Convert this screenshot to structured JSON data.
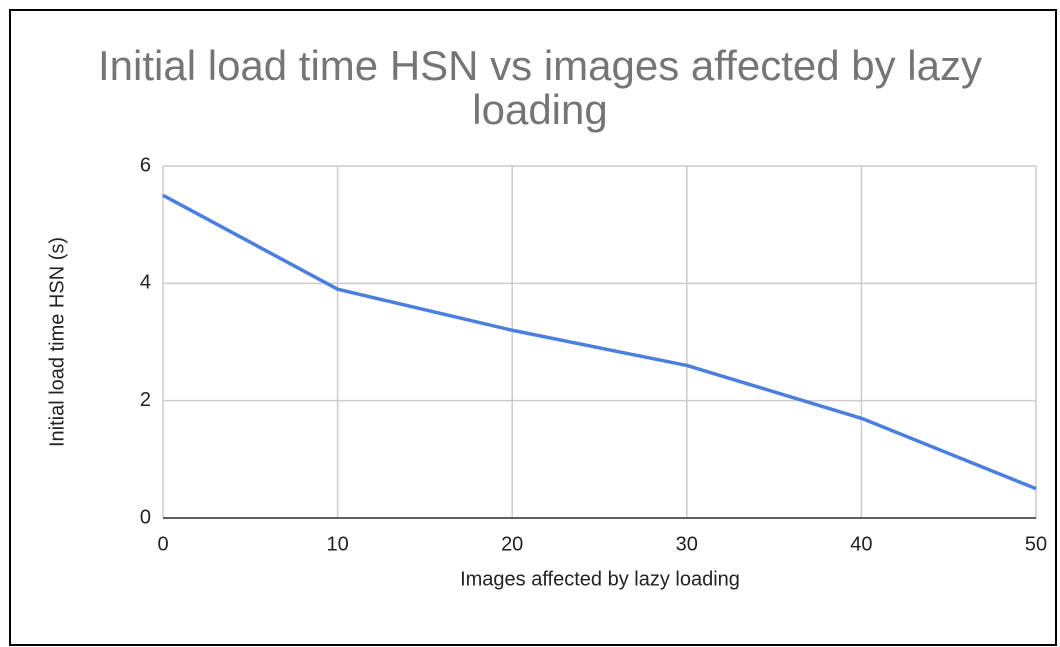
{
  "chart_data": {
    "type": "line",
    "title": "Initial load time HSN vs images affected by lazy loading",
    "x_label": "Images affected by lazy loading",
    "y_label": "Initial load time HSN (s)",
    "x": [
      0,
      10,
      20,
      30,
      40,
      50
    ],
    "series": [
      {
        "name": "Initial load time HSN (s)",
        "color": "#4a7fe0",
        "values": [
          5.5,
          3.9,
          3.2,
          2.6,
          1.7,
          0.5
        ]
      }
    ],
    "xlim": [
      0,
      50
    ],
    "xticks": [
      0,
      10,
      20,
      30,
      40,
      50
    ],
    "ylim": [
      0,
      6
    ],
    "yticks": [
      0,
      2,
      4,
      6
    ],
    "grid": true
  }
}
